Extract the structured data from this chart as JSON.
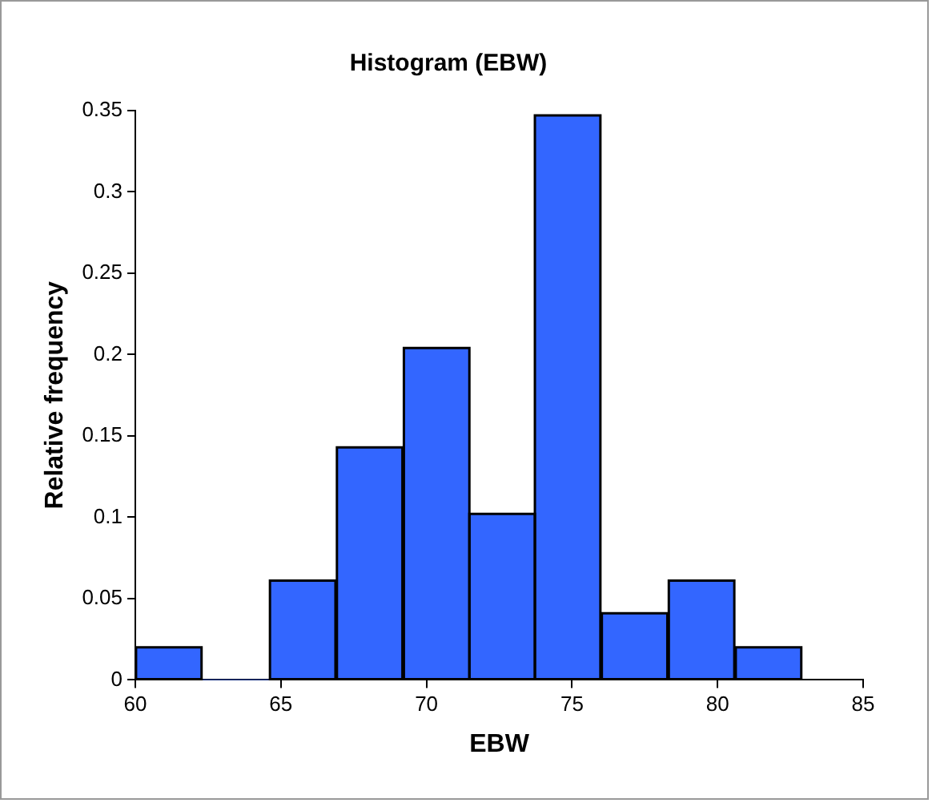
{
  "chart_data": {
    "type": "histogram",
    "title": "Histogram (EBW)",
    "xlabel": "EBW",
    "ylabel": "Relative frequency",
    "bins": [
      60,
      62.3,
      64.6,
      66.9,
      69.2,
      71.5,
      73.7,
      76,
      78.3,
      80.6,
      82.9
    ],
    "values": [
      0.02,
      0,
      0.061,
      0.143,
      0.204,
      0.102,
      0.347,
      0.041,
      0.061,
      0.02
    ],
    "color": "#3366ff",
    "xlim": [
      60,
      85
    ],
    "xticks": [
      60,
      65,
      70,
      75,
      80,
      85
    ],
    "ylim": [
      0,
      0.35
    ],
    "yticks": [
      0,
      0.05,
      0.1,
      0.15,
      0.2,
      0.25,
      0.3,
      0.35
    ],
    "grid": false,
    "legend": false
  }
}
